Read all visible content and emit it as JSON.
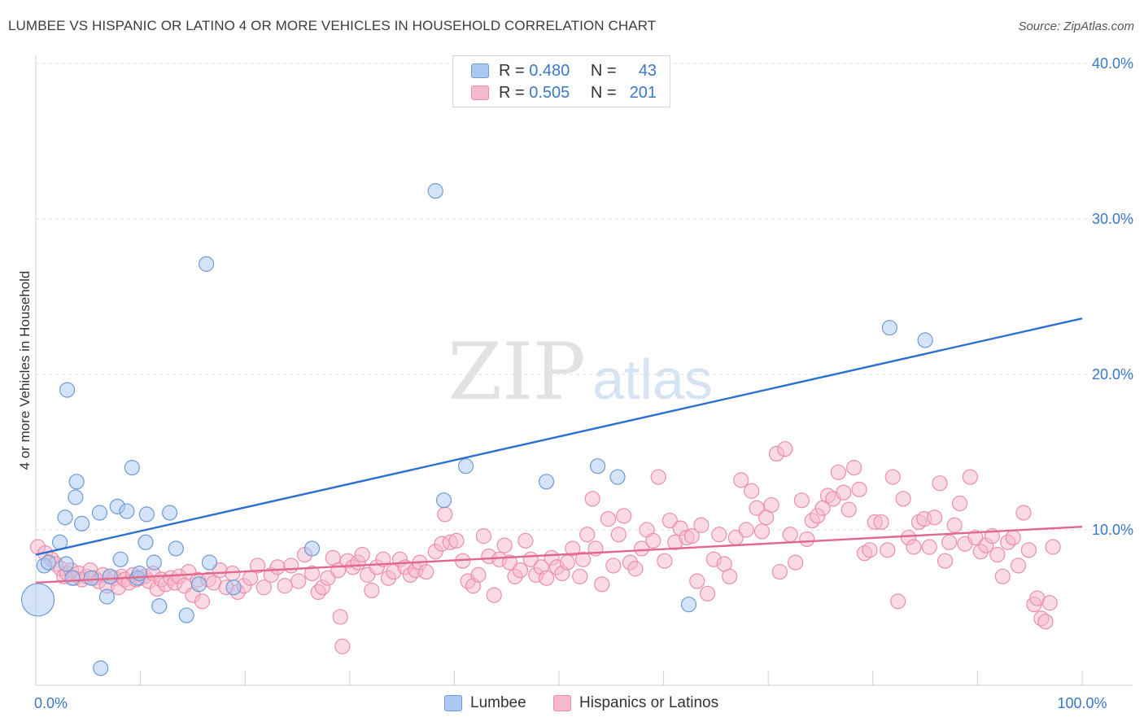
{
  "header": {
    "title": "LUMBEE VS HISPANIC OR LATINO 4 OR MORE VEHICLES IN HOUSEHOLD CORRELATION CHART",
    "source": "Source: ZipAtlas.com"
  },
  "legend": {
    "rows": [
      {
        "r_label": "R =",
        "r_value": "0.480",
        "n_label": "N =",
        "n_value": "43"
      },
      {
        "r_label": "R =",
        "r_value": "0.505",
        "n_label": "N =",
        "n_value": "201"
      }
    ]
  },
  "bottom_legend": {
    "lumbee": "Lumbee",
    "hispanic": "Hispanics or Latinos"
  },
  "watermark": {
    "zip": "ZIP",
    "atlas": "atlas"
  },
  "colors": {
    "lumbee_fill": "#aac8f0",
    "lumbee_stroke": "#6d9bd8",
    "lumbee_line": "#2d6fcf",
    "hispanic_fill": "#f6b8cc",
    "hispanic_stroke": "#ec8eab",
    "hispanic_line": "#e2678f",
    "tick_label": "#3a78c8"
  },
  "chart_data": {
    "type": "scatter",
    "xlabel": "",
    "ylabel": "4 or more Vehicles in Household",
    "xlim": [
      0,
      100
    ],
    "ylim": [
      0,
      40
    ],
    "x_tick_labels": [
      {
        "value": 0,
        "label": "0.0%"
      },
      {
        "value": 100,
        "label": "100.0%"
      }
    ],
    "y_tick_labels": [
      {
        "value": 10,
        "label": "10.0%"
      },
      {
        "value": 20,
        "label": "20.0%"
      },
      {
        "value": 30,
        "label": "30.0%"
      },
      {
        "value": 40,
        "label": "40.0%"
      }
    ],
    "grid": "horizontal dashed",
    "series": [
      {
        "name": "Lumbee",
        "trend": {
          "x": [
            0,
            100
          ],
          "y": [
            8.4,
            23.6
          ]
        },
        "points": [
          [
            0.2,
            5.5
          ],
          [
            0.8,
            7.7
          ],
          [
            1.2,
            7.9
          ],
          [
            2.3,
            9.2
          ],
          [
            2.8,
            10.8
          ],
          [
            2.9,
            7.8
          ],
          [
            3.0,
            19.0
          ],
          [
            3.5,
            6.9
          ],
          [
            3.8,
            12.1
          ],
          [
            3.9,
            13.1
          ],
          [
            4.4,
            10.4
          ],
          [
            5.3,
            6.9
          ],
          [
            6.1,
            11.1
          ],
          [
            6.2,
            1.1
          ],
          [
            6.8,
            5.7
          ],
          [
            7.1,
            7.0
          ],
          [
            7.8,
            11.5
          ],
          [
            8.1,
            8.1
          ],
          [
            8.7,
            11.2
          ],
          [
            9.2,
            14.0
          ],
          [
            9.7,
            6.9
          ],
          [
            9.9,
            7.2
          ],
          [
            10.5,
            9.2
          ],
          [
            10.6,
            11.0
          ],
          [
            11.3,
            7.9
          ],
          [
            11.8,
            5.1
          ],
          [
            12.8,
            11.1
          ],
          [
            13.4,
            8.8
          ],
          [
            14.4,
            4.5
          ],
          [
            15.6,
            6.5
          ],
          [
            16.3,
            27.1
          ],
          [
            16.6,
            7.9
          ],
          [
            18.9,
            6.3
          ],
          [
            26.4,
            8.8
          ],
          [
            38.2,
            31.8
          ],
          [
            39.0,
            11.9
          ],
          [
            41.1,
            14.1
          ],
          [
            48.8,
            13.1
          ],
          [
            53.7,
            14.1
          ],
          [
            55.6,
            13.4
          ],
          [
            62.4,
            5.2
          ],
          [
            81.6,
            23.0
          ],
          [
            85.0,
            22.2
          ]
        ]
      },
      {
        "name": "Hispanics or Latinos",
        "trend": {
          "x": [
            0,
            100
          ],
          "y": [
            6.6,
            10.2
          ]
        },
        "points": [
          [
            0.2,
            8.9
          ],
          [
            0.9,
            8.5
          ],
          [
            1.5,
            8.1
          ],
          [
            1.9,
            7.8
          ],
          [
            2.4,
            7.5
          ],
          [
            2.7,
            7.0
          ],
          [
            3.0,
            7.2
          ],
          [
            3.4,
            7.4
          ],
          [
            3.7,
            6.9
          ],
          [
            4.1,
            7.2
          ],
          [
            4.4,
            6.8
          ],
          [
            4.9,
            7.0
          ],
          [
            5.2,
            7.4
          ],
          [
            5.6,
            6.9
          ],
          [
            6.0,
            6.7
          ],
          [
            6.4,
            7.1
          ],
          [
            6.8,
            6.4
          ],
          [
            7.1,
            7.0
          ],
          [
            7.5,
            6.9
          ],
          [
            7.9,
            6.3
          ],
          [
            8.2,
            7.0
          ],
          [
            8.5,
            6.8
          ],
          [
            8.9,
            6.6
          ],
          [
            9.3,
            7.1
          ],
          [
            9.6,
            6.8
          ],
          [
            10.0,
            6.9
          ],
          [
            10.4,
            7.0
          ],
          [
            10.8,
            6.7
          ],
          [
            11.2,
            7.2
          ],
          [
            11.6,
            6.2
          ],
          [
            12.0,
            6.8
          ],
          [
            12.4,
            6.5
          ],
          [
            12.9,
            6.9
          ],
          [
            13.3,
            6.6
          ],
          [
            13.7,
            7.0
          ],
          [
            14.2,
            6.4
          ],
          [
            14.6,
            7.3
          ],
          [
            15.0,
            5.8
          ],
          [
            15.5,
            6.8
          ],
          [
            15.9,
            5.4
          ],
          [
            16.5,
            6.8
          ],
          [
            17.0,
            6.6
          ],
          [
            17.6,
            7.4
          ],
          [
            18.2,
            6.3
          ],
          [
            18.8,
            7.2
          ],
          [
            19.3,
            6.0
          ],
          [
            19.9,
            6.4
          ],
          [
            20.5,
            6.9
          ],
          [
            21.2,
            7.7
          ],
          [
            21.8,
            6.3
          ],
          [
            22.5,
            7.1
          ],
          [
            23.1,
            7.6
          ],
          [
            23.8,
            6.4
          ],
          [
            24.4,
            7.7
          ],
          [
            25.1,
            6.7
          ],
          [
            25.7,
            8.4
          ],
          [
            26.4,
            7.2
          ],
          [
            27.0,
            6.0
          ],
          [
            27.4,
            6.3
          ],
          [
            27.9,
            6.9
          ],
          [
            28.4,
            8.2
          ],
          [
            28.9,
            7.4
          ],
          [
            29.1,
            4.4
          ],
          [
            29.3,
            2.5
          ],
          [
            29.8,
            8.0
          ],
          [
            30.3,
            7.6
          ],
          [
            30.8,
            7.9
          ],
          [
            31.2,
            8.4
          ],
          [
            31.7,
            7.1
          ],
          [
            32.1,
            6.1
          ],
          [
            32.6,
            7.6
          ],
          [
            33.2,
            8.1
          ],
          [
            33.7,
            6.9
          ],
          [
            34.2,
            7.3
          ],
          [
            34.8,
            8.1
          ],
          [
            35.3,
            7.6
          ],
          [
            35.8,
            7.1
          ],
          [
            36.3,
            7.4
          ],
          [
            36.7,
            7.9
          ],
          [
            37.3,
            7.3
          ],
          [
            38.2,
            8.6
          ],
          [
            38.8,
            9.1
          ],
          [
            39.1,
            11.0
          ],
          [
            39.6,
            9.2
          ],
          [
            40.2,
            9.3
          ],
          [
            40.8,
            8.0
          ],
          [
            41.3,
            6.7
          ],
          [
            41.8,
            6.4
          ],
          [
            42.3,
            7.1
          ],
          [
            42.8,
            9.6
          ],
          [
            43.3,
            8.3
          ],
          [
            43.8,
            5.8
          ],
          [
            44.3,
            8.1
          ],
          [
            44.8,
            9.0
          ],
          [
            45.3,
            7.9
          ],
          [
            45.8,
            7.0
          ],
          [
            46.3,
            7.4
          ],
          [
            46.8,
            9.3
          ],
          [
            47.3,
            8.1
          ],
          [
            47.8,
            7.1
          ],
          [
            48.3,
            7.6
          ],
          [
            48.8,
            6.9
          ],
          [
            49.3,
            8.2
          ],
          [
            49.8,
            7.6
          ],
          [
            50.3,
            7.2
          ],
          [
            50.8,
            7.9
          ],
          [
            51.3,
            8.8
          ],
          [
            52.0,
            7.0
          ],
          [
            52.3,
            8.1
          ],
          [
            52.7,
            9.7
          ],
          [
            53.2,
            12.0
          ],
          [
            53.5,
            8.8
          ],
          [
            54.1,
            6.5
          ],
          [
            54.7,
            10.7
          ],
          [
            55.2,
            7.7
          ],
          [
            55.7,
            9.7
          ],
          [
            56.2,
            10.9
          ],
          [
            56.8,
            7.9
          ],
          [
            57.3,
            7.5
          ],
          [
            57.9,
            8.8
          ],
          [
            58.4,
            10.0
          ],
          [
            59.0,
            9.3
          ],
          [
            59.5,
            13.4
          ],
          [
            60.1,
            8.0
          ],
          [
            60.6,
            10.6
          ],
          [
            61.1,
            9.2
          ],
          [
            61.6,
            10.1
          ],
          [
            62.2,
            9.5
          ],
          [
            62.7,
            9.6
          ],
          [
            63.2,
            6.7
          ],
          [
            63.6,
            10.3
          ],
          [
            64.2,
            5.9
          ],
          [
            64.8,
            8.1
          ],
          [
            65.3,
            9.7
          ],
          [
            65.8,
            7.8
          ],
          [
            66.3,
            7.0
          ],
          [
            66.9,
            9.5
          ],
          [
            67.4,
            13.2
          ],
          [
            67.9,
            10.0
          ],
          [
            68.4,
            12.5
          ],
          [
            68.9,
            11.4
          ],
          [
            69.4,
            9.9
          ],
          [
            69.8,
            10.8
          ],
          [
            70.3,
            11.6
          ],
          [
            70.8,
            14.9
          ],
          [
            71.1,
            7.3
          ],
          [
            71.6,
            15.2
          ],
          [
            72.1,
            9.7
          ],
          [
            72.6,
            7.9
          ],
          [
            73.2,
            11.9
          ],
          [
            73.7,
            9.4
          ],
          [
            74.2,
            10.6
          ],
          [
            74.7,
            10.9
          ],
          [
            75.2,
            11.4
          ],
          [
            75.7,
            12.2
          ],
          [
            76.2,
            12.0
          ],
          [
            76.7,
            13.7
          ],
          [
            77.2,
            12.4
          ],
          [
            77.7,
            11.3
          ],
          [
            78.2,
            14.0
          ],
          [
            78.7,
            12.6
          ],
          [
            79.2,
            8.5
          ],
          [
            79.7,
            8.7
          ],
          [
            80.2,
            10.5
          ],
          [
            80.8,
            10.5
          ],
          [
            81.4,
            8.7
          ],
          [
            81.9,
            13.4
          ],
          [
            82.4,
            5.4
          ],
          [
            82.9,
            12.0
          ],
          [
            83.4,
            9.5
          ],
          [
            83.9,
            8.9
          ],
          [
            84.4,
            10.5
          ],
          [
            84.9,
            10.7
          ],
          [
            85.4,
            8.9
          ],
          [
            85.9,
            10.8
          ],
          [
            86.4,
            13.0
          ],
          [
            86.9,
            8.0
          ],
          [
            87.3,
            9.2
          ],
          [
            87.8,
            10.3
          ],
          [
            88.3,
            11.7
          ],
          [
            88.8,
            9.1
          ],
          [
            89.3,
            13.4
          ],
          [
            89.8,
            9.5
          ],
          [
            90.3,
            8.6
          ],
          [
            90.8,
            9.0
          ],
          [
            91.4,
            9.6
          ],
          [
            91.9,
            8.4
          ],
          [
            92.4,
            7.0
          ],
          [
            92.9,
            9.2
          ],
          [
            93.4,
            9.5
          ],
          [
            93.9,
            7.7
          ],
          [
            94.4,
            11.1
          ],
          [
            94.9,
            8.7
          ],
          [
            95.4,
            5.2
          ],
          [
            95.7,
            5.6
          ],
          [
            96.1,
            4.3
          ],
          [
            96.5,
            4.1
          ],
          [
            96.9,
            5.3
          ],
          [
            97.2,
            8.9
          ]
        ]
      }
    ]
  }
}
